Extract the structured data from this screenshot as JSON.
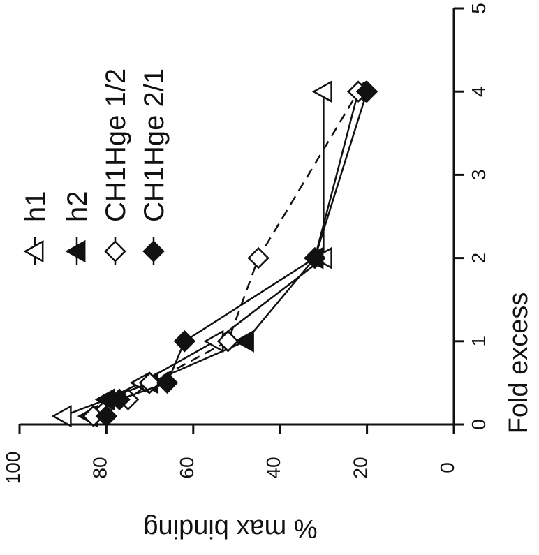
{
  "chart_data": {
    "type": "line",
    "orientation": "rotated-90-clockwise",
    "xlabel": "Fold excess",
    "ylabel": "% max binding",
    "xlim": [
      0,
      5
    ],
    "ylim": [
      0,
      100
    ],
    "x_ticks": [
      0,
      1,
      2,
      3,
      4,
      5
    ],
    "y_ticks": [
      0,
      20,
      40,
      60,
      80,
      100
    ],
    "x_tick_labels": [
      "0",
      "1",
      "2",
      "3",
      "4",
      "5"
    ],
    "y_tick_labels": [
      "0",
      "20",
      "40",
      "60",
      "80",
      "100"
    ],
    "grid": false,
    "legend_position": "top",
    "series": [
      {
        "name": "h1",
        "marker": "open-triangle",
        "line": "solid",
        "x": [
          0.1,
          0.3,
          0.5,
          1.0,
          2.0,
          4.0
        ],
        "y": [
          90,
          80,
          72,
          55,
          30,
          30
        ]
      },
      {
        "name": "h2",
        "marker": "filled-triangle",
        "line": "solid",
        "x": [
          0.1,
          0.3,
          0.5,
          1.0,
          2.0,
          4.0
        ],
        "y": [
          84,
          80,
          70,
          48,
          32,
          22
        ]
      },
      {
        "name": "CH1Hge 1/2",
        "marker": "open-diamond",
        "line": "dashed",
        "x": [
          0.1,
          0.3,
          0.5,
          1.0,
          2.0,
          4.0
        ],
        "y": [
          83,
          75,
          70,
          52,
          45,
          22
        ]
      },
      {
        "name": "CH1Hge 2/1",
        "marker": "filled-diamond",
        "line": "solid",
        "x": [
          0.1,
          0.3,
          0.5,
          1.0,
          2.0,
          4.0
        ],
        "y": [
          80,
          77,
          66,
          62,
          32,
          20
        ]
      }
    ]
  }
}
